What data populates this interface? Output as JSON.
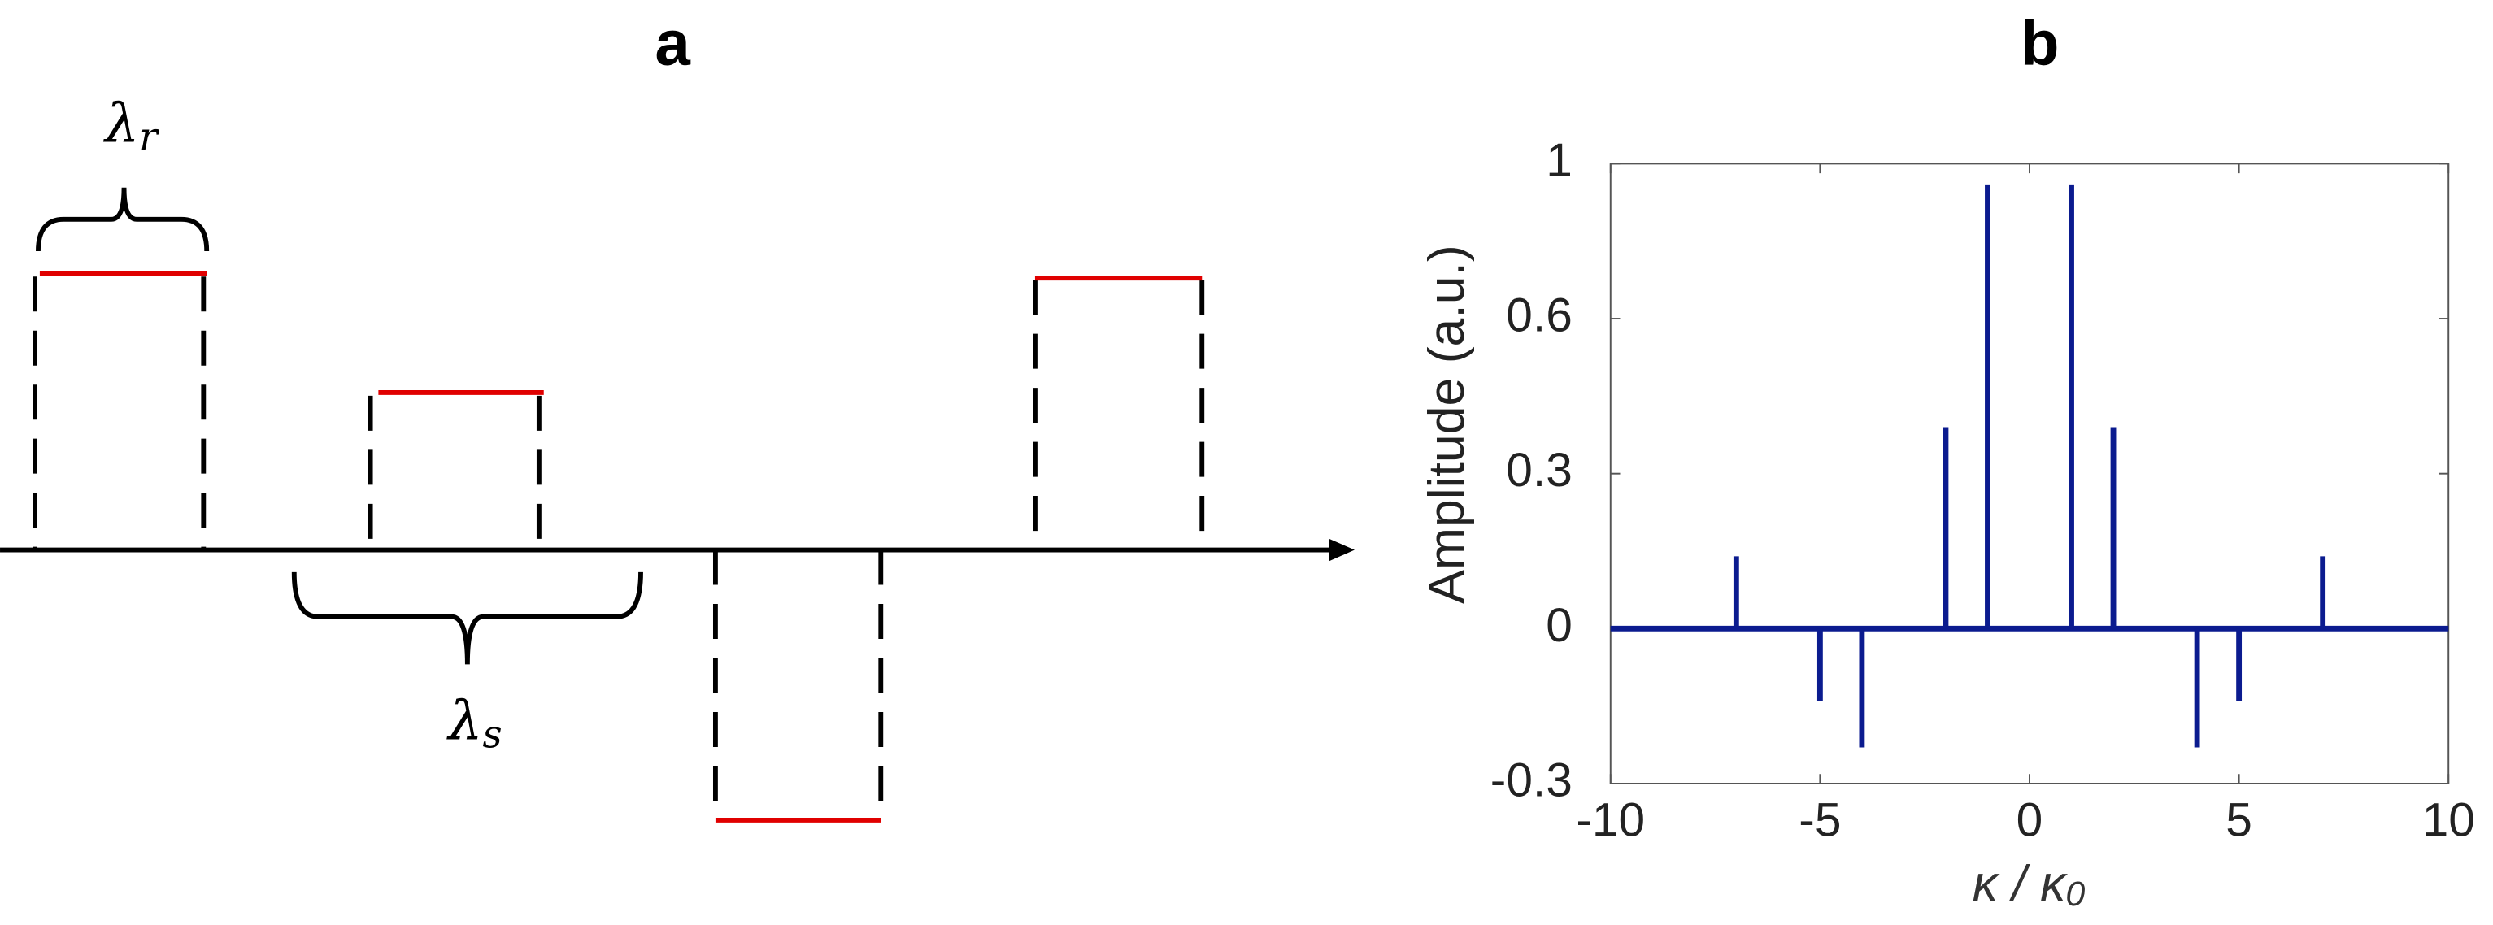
{
  "panel_a": {
    "label": "a",
    "lambda_r": {
      "symbol": "λ",
      "subscript": "r"
    },
    "lambda_s": {
      "symbol": "λ",
      "subscript": "s"
    }
  },
  "chart_data": {
    "type": "stem",
    "title": "b",
    "x_label": {
      "text": "κ / κ",
      "subscript": "0"
    },
    "y_label": "Amplitude (a.u.)",
    "x": [
      -7,
      -5,
      -4,
      -2,
      -1,
      1,
      2,
      4,
      5,
      7
    ],
    "values": [
      0.14,
      -0.14,
      -0.23,
      0.39,
      0.86,
      0.86,
      0.39,
      -0.23,
      -0.14,
      0.14
    ],
    "color": "#0b1b8f",
    "xlim": [
      -10,
      10
    ],
    "xticks": [
      -10,
      -5,
      0,
      5,
      10
    ],
    "ylim": [
      -0.3,
      0.9
    ],
    "yticks": [
      -0.3,
      0,
      0.3,
      0.6,
      {
        "value": 0.9,
        "label": "1"
      }
    ]
  }
}
